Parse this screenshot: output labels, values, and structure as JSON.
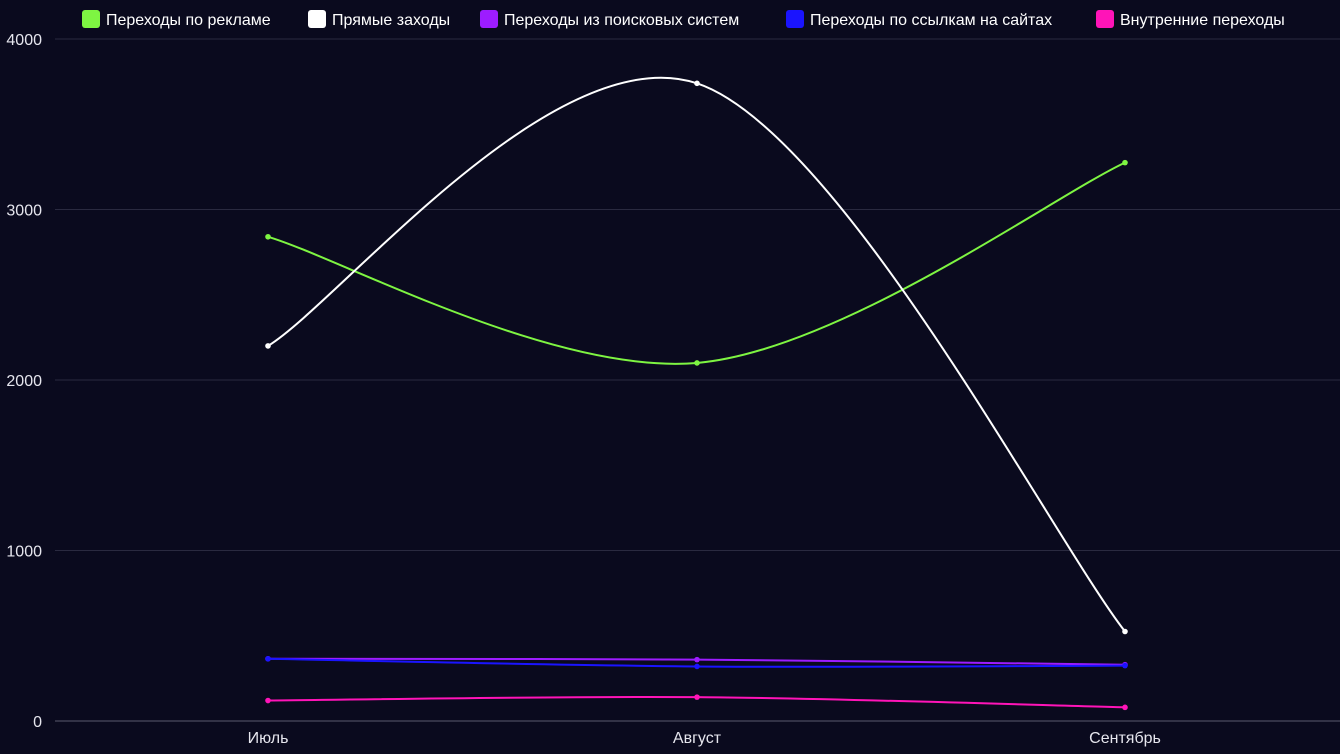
{
  "chart_data": {
    "type": "line",
    "categories": [
      "Июль",
      "Август",
      "Сентябрь"
    ],
    "ylim": [
      0,
      4000
    ],
    "yticks": [
      0,
      1000,
      2000,
      3000,
      4000
    ],
    "grid": true,
    "legend_position": "top",
    "series": [
      {
        "name": "Переходы по рекламе",
        "color": "#7ef542",
        "values": [
          2840,
          2100,
          3275
        ]
      },
      {
        "name": "Прямые заходы",
        "color": "#ffffff",
        "values": [
          2200,
          3740,
          525
        ]
      },
      {
        "name": "Переходы из поисковых систем",
        "color": "#9d1cff",
        "values": [
          365,
          360,
          330
        ]
      },
      {
        "name": "Переходы по ссылкам на сайтах",
        "color": "#1a14ff",
        "values": [
          365,
          320,
          325
        ]
      },
      {
        "name": "Внутренние переходы",
        "color": "#ff14b8",
        "values": [
          120,
          140,
          80
        ]
      }
    ]
  }
}
